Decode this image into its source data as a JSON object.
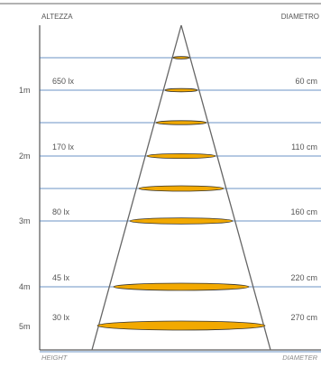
{
  "header": {
    "left_label": "ALTEZZA",
    "right_label": "DIAMETRO"
  },
  "footer": {
    "left_label": "HEIGHT",
    "right_label": "DIAMETER"
  },
  "colors": {
    "grid_line": "#3a6fb3",
    "cone_line": "#666666",
    "ellipse_fill": "#f2a900",
    "ellipse_stroke": "#333333",
    "frame": "#333333"
  },
  "rows": [
    {
      "height": "1m",
      "lux": "650 lx",
      "diameter": "60 cm"
    },
    {
      "height": "2m",
      "lux": "170 lx",
      "diameter": "110 cm"
    },
    {
      "height": "3m",
      "lux": "80 lx",
      "diameter": "160 cm"
    },
    {
      "height": "4m",
      "lux": "45 lx",
      "diameter": "220 cm"
    },
    {
      "height": "5m",
      "lux": "30 lx",
      "diameter": "270 cm"
    }
  ]
}
